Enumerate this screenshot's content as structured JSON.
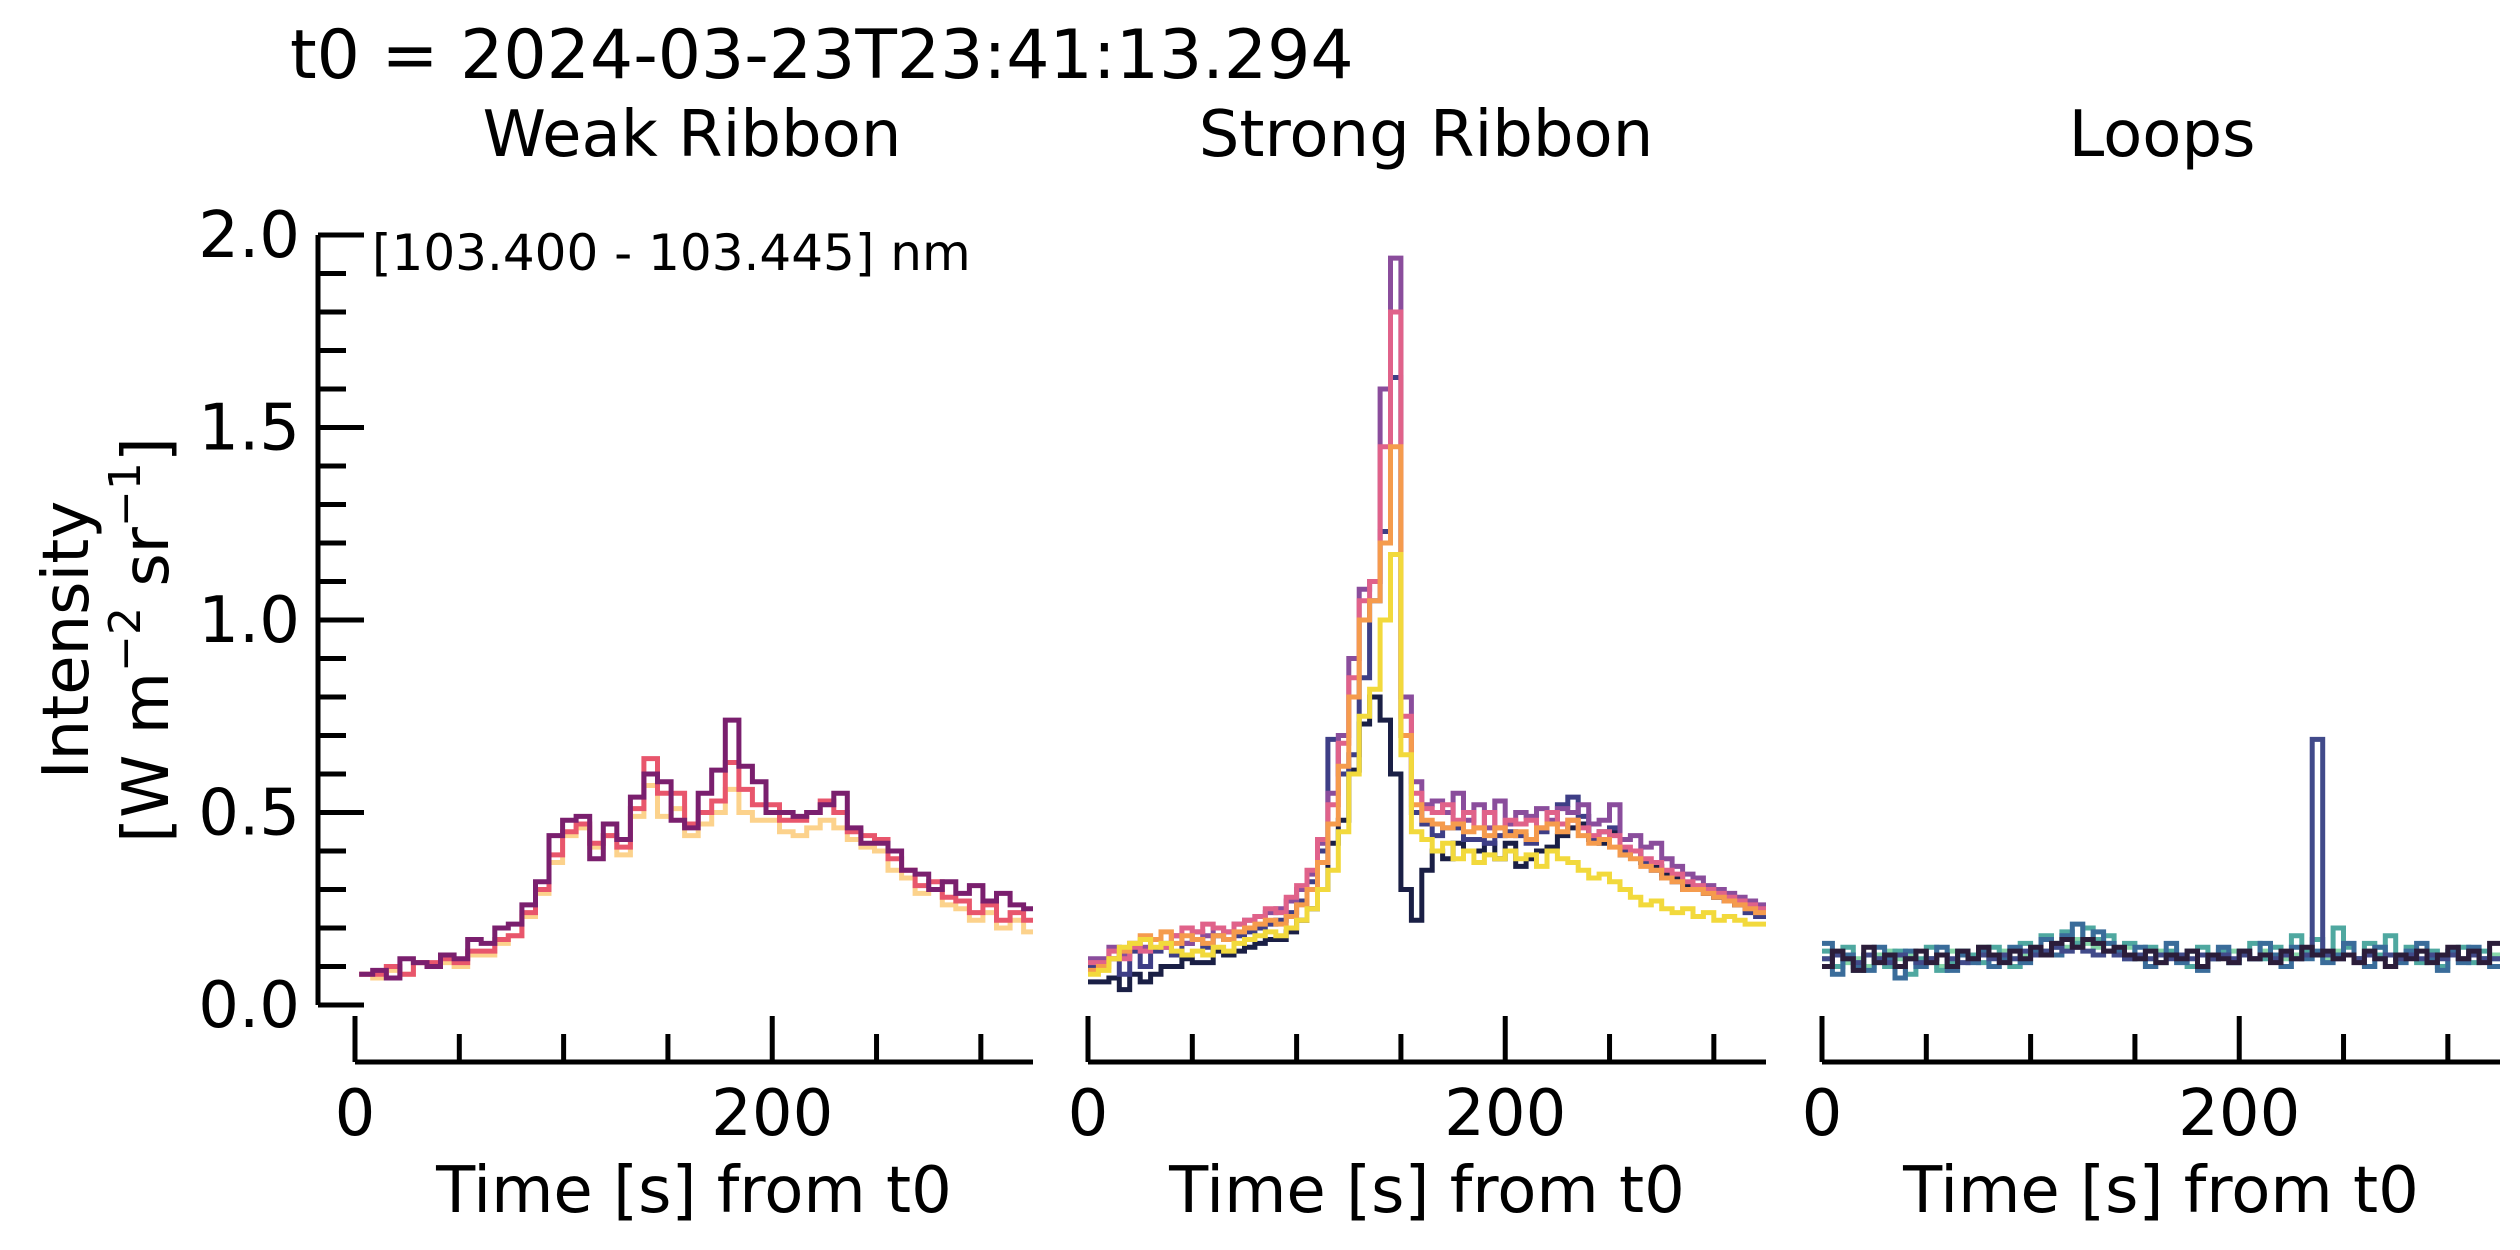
{
  "figure": {
    "suptitle": "t0 = 2024-03-23T23:41:13.294",
    "ylabel_line1": "Intensity",
    "ylabel_line2": "[W m",
    "ylabel_sup1": "−2",
    "ylabel_mid": " sr",
    "ylabel_sup2": "−1",
    "ylabel_end": "]",
    "annotation": "[103.400 - 103.445] nm"
  },
  "chart_data": [
    {
      "type": "line",
      "drawstyle": "steps",
      "title": "Weak Ribbon",
      "xlabel": "Time [s] from t0",
      "ylabel": "Intensity [W m−2 sr−1]",
      "xlim": [
        0,
        325
      ],
      "ylim": [
        0,
        2.0
      ],
      "xticks": [
        0,
        200
      ],
      "yticks": [
        0.0,
        0.5,
        1.0,
        1.5,
        2.0
      ],
      "x_start": 2,
      "x_step": 6.5,
      "series": [
        {
          "color": "#fcd28c",
          "values": [
            0.08,
            0.07,
            0.09,
            0.08,
            0.11,
            0.1,
            0.11,
            0.1,
            0.13,
            0.13,
            0.16,
            0.18,
            0.23,
            0.29,
            0.37,
            0.44,
            0.46,
            0.41,
            0.44,
            0.39,
            0.49,
            0.57,
            0.49,
            0.51,
            0.44,
            0.47,
            0.5,
            0.56,
            0.5,
            0.48,
            0.48,
            0.45,
            0.44,
            0.46,
            0.48,
            0.46,
            0.43,
            0.41,
            0.4,
            0.35,
            0.33,
            0.29,
            0.3,
            0.26,
            0.25,
            0.22,
            0.24,
            0.2,
            0.22,
            0.19
          ]
        },
        {
          "color": "#e8566c",
          "values": [
            0.08,
            0.08,
            0.1,
            0.08,
            0.11,
            0.11,
            0.12,
            0.11,
            0.14,
            0.14,
            0.17,
            0.18,
            0.24,
            0.3,
            0.39,
            0.45,
            0.47,
            0.42,
            0.44,
            0.41,
            0.51,
            0.64,
            0.55,
            0.55,
            0.47,
            0.5,
            0.53,
            0.63,
            0.56,
            0.52,
            0.52,
            0.48,
            0.48,
            0.5,
            0.53,
            0.5,
            0.45,
            0.44,
            0.43,
            0.38,
            0.35,
            0.31,
            0.32,
            0.28,
            0.27,
            0.24,
            0.26,
            0.22,
            0.24,
            0.22
          ]
        },
        {
          "color": "#7a1f6e",
          "values": [
            0.08,
            0.09,
            0.07,
            0.12,
            0.11,
            0.1,
            0.13,
            0.12,
            0.17,
            0.16,
            0.2,
            0.21,
            0.26,
            0.32,
            0.44,
            0.48,
            0.49,
            0.38,
            0.47,
            0.43,
            0.54,
            0.6,
            0.58,
            0.48,
            0.46,
            0.55,
            0.61,
            0.74,
            0.62,
            0.58,
            0.5,
            0.5,
            0.49,
            0.5,
            0.52,
            0.55,
            0.46,
            0.42,
            0.42,
            0.4,
            0.35,
            0.34,
            0.3,
            0.32,
            0.29,
            0.31,
            0.27,
            0.29,
            0.26,
            0.25
          ]
        }
      ]
    },
    {
      "type": "line",
      "drawstyle": "steps",
      "title": "Strong Ribbon",
      "xlabel": "Time [s] from t0",
      "xlim": [
        0,
        325
      ],
      "ylim": [
        0,
        2.0
      ],
      "xticks": [
        0,
        200
      ],
      "x_start": 0,
      "x_step": 5,
      "series": [
        {
          "color": "#1a1f45",
          "values": [
            0.06,
            0.06,
            0.07,
            0.04,
            0.08,
            0.06,
            0.08,
            0.1,
            0.1,
            0.12,
            0.11,
            0.11,
            0.14,
            0.13,
            0.14,
            0.15,
            0.16,
            0.17,
            0.17,
            0.19,
            0.22,
            0.25,
            0.3,
            0.42,
            0.48,
            0.61,
            0.73,
            0.8,
            0.74,
            0.6,
            0.3,
            0.22,
            0.35,
            0.4,
            0.38,
            0.42,
            0.4,
            0.4,
            0.42,
            0.38,
            0.42,
            0.36,
            0.38,
            0.4,
            0.41,
            0.44,
            0.46,
            0.47,
            0.43,
            0.42,
            0.45,
            0.39,
            0.4,
            0.37,
            0.36,
            0.34,
            0.33,
            0.31,
            0.3,
            0.29,
            0.28,
            0.27,
            0.26,
            0.25,
            0.25
          ]
        },
        {
          "color": "#3e3e86",
          "values": [
            0.1,
            0.11,
            0.12,
            0.08,
            0.14,
            0.1,
            0.14,
            0.15,
            0.13,
            0.16,
            0.17,
            0.15,
            0.18,
            0.17,
            0.18,
            0.19,
            0.2,
            0.21,
            0.22,
            0.24,
            0.27,
            0.32,
            0.4,
            0.69,
            0.6,
            0.65,
            0.85,
            1.05,
            1.23,
            1.63,
            0.7,
            0.5,
            0.47,
            0.44,
            0.46,
            0.46,
            0.43,
            0.43,
            0.42,
            0.44,
            0.45,
            0.44,
            0.42,
            0.45,
            0.47,
            0.52,
            0.54,
            0.49,
            0.43,
            0.45,
            0.46,
            0.4,
            0.4,
            0.37,
            0.35,
            0.33,
            0.32,
            0.3,
            0.3,
            0.29,
            0.28,
            0.27,
            0.26,
            0.24,
            0.23
          ]
        },
        {
          "color": "#8a4d9c",
          "values": [
            0.12,
            0.12,
            0.15,
            0.13,
            0.16,
            0.15,
            0.17,
            0.16,
            0.18,
            0.16,
            0.19,
            0.18,
            0.2,
            0.19,
            0.21,
            0.22,
            0.23,
            0.24,
            0.25,
            0.27,
            0.3,
            0.34,
            0.42,
            0.55,
            0.7,
            0.9,
            1.08,
            1.1,
            1.6,
            1.94,
            0.8,
            0.58,
            0.52,
            0.53,
            0.5,
            0.55,
            0.48,
            0.52,
            0.46,
            0.53,
            0.47,
            0.5,
            0.49,
            0.51,
            0.48,
            0.51,
            0.5,
            0.52,
            0.47,
            0.48,
            0.52,
            0.43,
            0.44,
            0.41,
            0.42,
            0.38,
            0.36,
            0.34,
            0.33,
            0.31,
            0.3,
            0.29,
            0.28,
            0.27,
            0.26
          ]
        },
        {
          "color": "#e0628a",
          "values": [
            0.11,
            0.11,
            0.14,
            0.12,
            0.15,
            0.14,
            0.17,
            0.15,
            0.18,
            0.2,
            0.19,
            0.21,
            0.2,
            0.19,
            0.21,
            0.22,
            0.23,
            0.25,
            0.24,
            0.28,
            0.31,
            0.35,
            0.43,
            0.52,
            0.68,
            0.85,
            1.05,
            1.1,
            1.45,
            1.8,
            0.75,
            0.55,
            0.51,
            0.5,
            0.52,
            0.48,
            0.5,
            0.46,
            0.5,
            0.46,
            0.48,
            0.47,
            0.48,
            0.46,
            0.5,
            0.47,
            0.48,
            0.46,
            0.44,
            0.45,
            0.44,
            0.41,
            0.4,
            0.38,
            0.37,
            0.35,
            0.34,
            0.32,
            0.31,
            0.3,
            0.29,
            0.28,
            0.27,
            0.26,
            0.25
          ]
        },
        {
          "color": "#f59b4d",
          "values": [
            0.09,
            0.1,
            0.12,
            0.14,
            0.16,
            0.18,
            0.17,
            0.19,
            0.16,
            0.18,
            0.17,
            0.16,
            0.18,
            0.17,
            0.19,
            0.2,
            0.21,
            0.22,
            0.21,
            0.23,
            0.26,
            0.3,
            0.37,
            0.47,
            0.62,
            0.8,
            1.0,
            1.05,
            1.2,
            1.45,
            0.7,
            0.52,
            0.48,
            0.47,
            0.46,
            0.47,
            0.45,
            0.46,
            0.44,
            0.46,
            0.44,
            0.45,
            0.43,
            0.46,
            0.47,
            0.45,
            0.48,
            0.44,
            0.42,
            0.43,
            0.41,
            0.39,
            0.38,
            0.36,
            0.35,
            0.33,
            0.32,
            0.3,
            0.3,
            0.29,
            0.28,
            0.27,
            0.26,
            0.25,
            0.24
          ]
        },
        {
          "color": "#f2d93c",
          "values": [
            0.08,
            0.09,
            0.12,
            0.15,
            0.16,
            0.17,
            0.15,
            0.16,
            0.14,
            0.13,
            0.14,
            0.13,
            0.15,
            0.14,
            0.16,
            0.17,
            0.18,
            0.19,
            0.18,
            0.2,
            0.22,
            0.25,
            0.3,
            0.35,
            0.45,
            0.6,
            0.75,
            0.82,
            1.0,
            1.17,
            0.65,
            0.45,
            0.43,
            0.4,
            0.42,
            0.38,
            0.4,
            0.37,
            0.39,
            0.38,
            0.4,
            0.38,
            0.39,
            0.36,
            0.4,
            0.38,
            0.37,
            0.35,
            0.33,
            0.34,
            0.32,
            0.3,
            0.28,
            0.26,
            0.27,
            0.25,
            0.24,
            0.25,
            0.23,
            0.24,
            0.22,
            0.23,
            0.22,
            0.21,
            0.21
          ]
        }
      ]
    },
    {
      "type": "line",
      "drawstyle": "steps",
      "title": "Loops",
      "xlabel": "Time [s] from t0",
      "xlim": [
        0,
        325
      ],
      "ylim": [
        0,
        2.0
      ],
      "xticks": [
        0,
        200
      ],
      "x_start": 0,
      "x_step": 5,
      "series": [
        {
          "color": "#86d6a9",
          "values": [
            0.12,
            0.13,
            0.11,
            0.12,
            0.1,
            0.13,
            0.14,
            0.12,
            0.13,
            0.11,
            0.12,
            0.1,
            0.14,
            0.13,
            0.12,
            0.15,
            0.13,
            0.14,
            0.12,
            0.13,
            0.15,
            0.14,
            0.16,
            0.15,
            0.17,
            0.16,
            0.15,
            0.16,
            0.14,
            0.15,
            0.13,
            0.12,
            0.14,
            0.13,
            0.12,
            0.14,
            0.13,
            0.12,
            0.13,
            0.14,
            0.13,
            0.12,
            0.14,
            0.13,
            0.12,
            0.13,
            0.14,
            0.13,
            0.12,
            0.14,
            0.13,
            0.12,
            0.14,
            0.15,
            0.13,
            0.12,
            0.13,
            0.14,
            0.12,
            0.13,
            0.14,
            0.12,
            0.13,
            0.12,
            0.13
          ]
        },
        {
          "color": "#4fa8a0",
          "values": [
            0.14,
            0.1,
            0.15,
            0.09,
            0.13,
            0.12,
            0.1,
            0.14,
            0.08,
            0.12,
            0.15,
            0.09,
            0.11,
            0.14,
            0.13,
            0.11,
            0.15,
            0.12,
            0.1,
            0.16,
            0.13,
            0.18,
            0.15,
            0.19,
            0.16,
            0.2,
            0.17,
            0.18,
            0.14,
            0.16,
            0.12,
            0.15,
            0.11,
            0.14,
            0.13,
            0.1,
            0.15,
            0.12,
            0.14,
            0.11,
            0.13,
            0.16,
            0.12,
            0.15,
            0.13,
            0.18,
            0.14,
            0.17,
            0.13,
            0.2,
            0.15,
            0.12,
            0.16,
            0.13,
            0.18,
            0.12,
            0.15,
            0.11,
            0.14,
            0.1,
            0.13,
            0.15,
            0.11,
            0.14,
            0.12
          ]
        },
        {
          "color": "#3a6c9a",
          "values": [
            0.16,
            0.08,
            0.13,
            0.1,
            0.09,
            0.15,
            0.12,
            0.07,
            0.14,
            0.1,
            0.12,
            0.15,
            0.09,
            0.13,
            0.11,
            0.14,
            0.1,
            0.12,
            0.15,
            0.11,
            0.14,
            0.17,
            0.13,
            0.18,
            0.21,
            0.17,
            0.19,
            0.16,
            0.14,
            0.12,
            0.15,
            0.1,
            0.13,
            0.16,
            0.11,
            0.14,
            0.09,
            0.12,
            0.15,
            0.11,
            0.14,
            0.12,
            0.16,
            0.13,
            0.1,
            0.15,
            0.12,
            0.14,
            0.11,
            0.13,
            0.16,
            0.12,
            0.1,
            0.15,
            0.13,
            0.11,
            0.14,
            0.16,
            0.12,
            0.09,
            0.14,
            0.11,
            0.15,
            0.12,
            0.1
          ]
        },
        {
          "color": "#414a8a",
          "values": [
            0.12,
            0.13,
            0.12,
            0.11,
            0.13,
            0.12,
            0.11,
            0.13,
            0.12,
            0.11,
            0.12,
            0.13,
            0.12,
            0.11,
            0.12,
            0.13,
            0.12,
            0.13,
            0.12,
            0.14,
            0.13,
            0.14,
            0.15,
            0.14,
            0.15,
            0.14,
            0.13,
            0.14,
            0.13,
            0.12,
            0.13,
            0.12,
            0.13,
            0.12,
            0.13,
            0.12,
            0.13,
            0.12,
            0.13,
            0.12,
            0.13,
            0.12,
            0.13,
            0.12,
            0.13,
            0.12,
            0.13,
            0.69,
            0.13,
            0.12,
            0.13,
            0.12,
            0.13,
            0.12,
            0.13,
            0.12,
            0.13,
            0.12,
            0.13,
            0.12,
            0.13,
            0.12,
            0.13,
            0.12,
            0.12
          ]
        },
        {
          "color": "#2b1d3a",
          "values": [
            0.1,
            0.14,
            0.12,
            0.09,
            0.15,
            0.11,
            0.13,
            0.1,
            0.12,
            0.14,
            0.11,
            0.13,
            0.1,
            0.14,
            0.12,
            0.15,
            0.13,
            0.11,
            0.14,
            0.12,
            0.15,
            0.13,
            0.16,
            0.17,
            0.15,
            0.17,
            0.16,
            0.14,
            0.15,
            0.13,
            0.12,
            0.14,
            0.11,
            0.13,
            0.12,
            0.14,
            0.1,
            0.13,
            0.12,
            0.11,
            0.14,
            0.12,
            0.13,
            0.11,
            0.14,
            0.12,
            0.15,
            0.13,
            0.14,
            0.12,
            0.13,
            0.11,
            0.14,
            0.12,
            0.1,
            0.13,
            0.12,
            0.14,
            0.11,
            0.13,
            0.15,
            0.12,
            0.14,
            0.11,
            0.16
          ]
        }
      ]
    }
  ]
}
